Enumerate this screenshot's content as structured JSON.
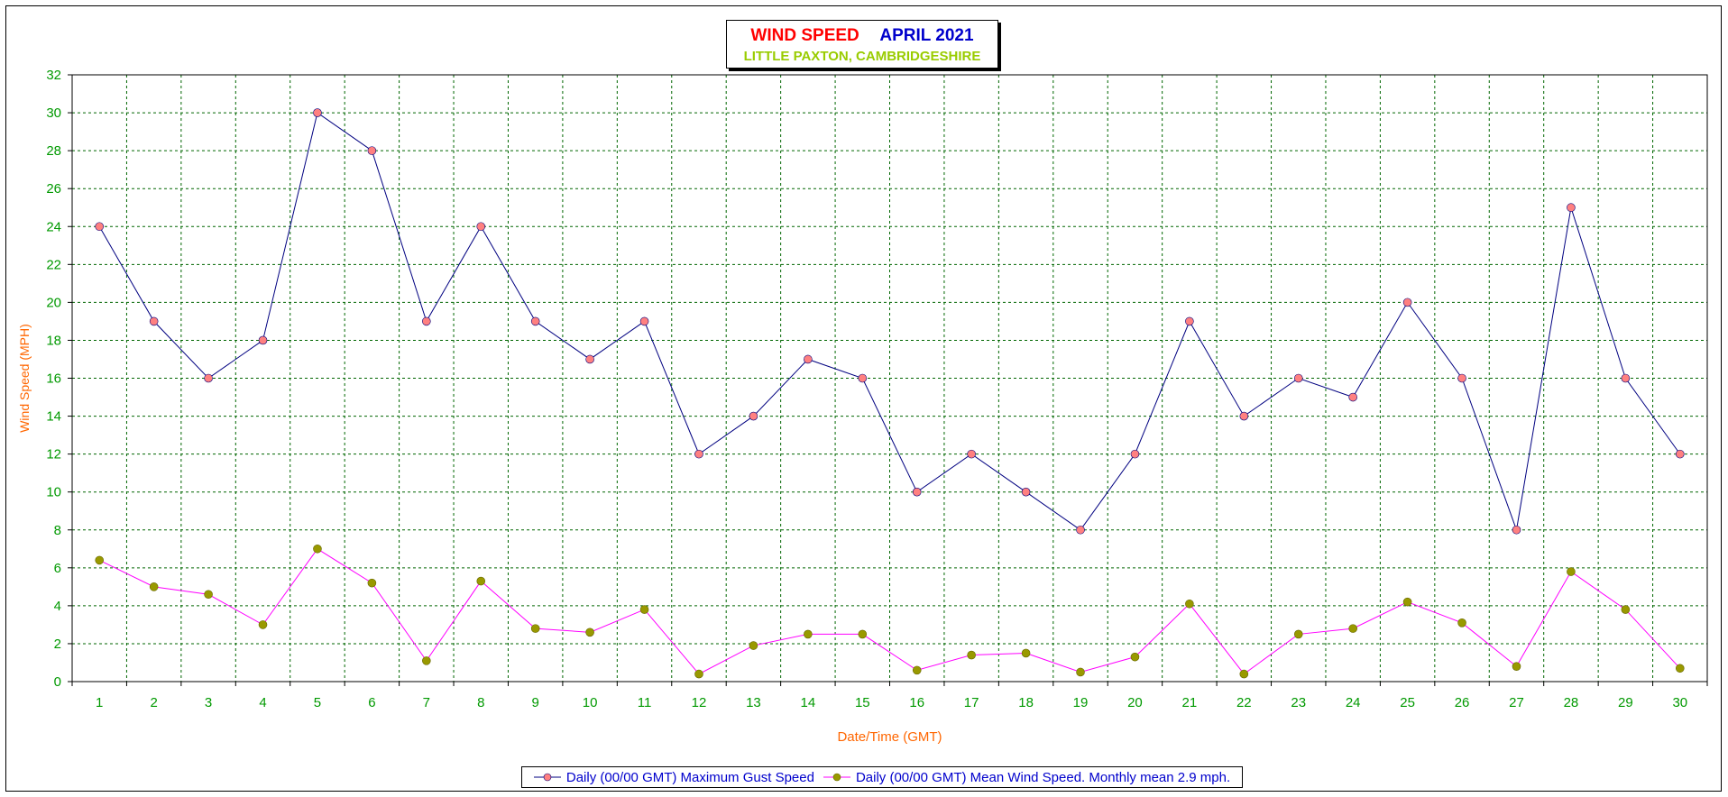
{
  "title": {
    "main": "WIND SPEED",
    "month": "APRIL 2021",
    "location": "LITTLE PAXTON, CAMBRIDGESHIRE"
  },
  "colors": {
    "title_main": "#ff0000",
    "title_month": "#0000cc",
    "location": "#99cc00",
    "axis_text": "#009900",
    "axis_label": "#ff6600",
    "grid": "#006600",
    "gust_line": "#000080",
    "gust_marker": "#ff8080",
    "mean_line": "#ff00ff",
    "mean_marker": "#999900",
    "legend_text": "#0000cc"
  },
  "chart_data": {
    "type": "line",
    "xlabel": "Date/Time (GMT)",
    "ylabel": "Wind Speed (MPH)",
    "ylim": [
      0,
      32
    ],
    "yticks": [
      0,
      2,
      4,
      6,
      8,
      10,
      12,
      14,
      16,
      18,
      20,
      22,
      24,
      26,
      28,
      30,
      32
    ],
    "categories": [
      "1",
      "2",
      "3",
      "4",
      "5",
      "6",
      "7",
      "8",
      "9",
      "10",
      "11",
      "12",
      "13",
      "14",
      "15",
      "16",
      "17",
      "18",
      "19",
      "20",
      "21",
      "22",
      "23",
      "24",
      "25",
      "26",
      "27",
      "28",
      "29",
      "30"
    ],
    "grid": true,
    "legend_position": "bottom",
    "series": [
      {
        "name": "Daily (00/00 GMT) Maximum Gust Speed",
        "values": [
          24,
          19,
          16,
          18,
          30,
          28,
          19,
          24,
          19,
          17,
          19,
          12,
          14,
          17,
          16,
          10,
          12,
          10,
          8,
          12,
          19,
          14,
          16,
          15,
          20,
          16,
          8,
          25,
          16,
          12
        ]
      },
      {
        "name": "Daily (00/00 GMT) Mean Wind Speed. Monthly mean 2.9 mph.",
        "values": [
          6.4,
          5.0,
          4.6,
          3.0,
          7.0,
          5.2,
          1.1,
          5.3,
          2.8,
          2.6,
          3.8,
          0.4,
          1.9,
          2.5,
          2.5,
          0.6,
          1.4,
          1.5,
          0.5,
          1.3,
          4.1,
          0.4,
          2.5,
          2.8,
          4.2,
          3.1,
          0.8,
          5.8,
          3.8,
          0.7
        ]
      }
    ]
  }
}
